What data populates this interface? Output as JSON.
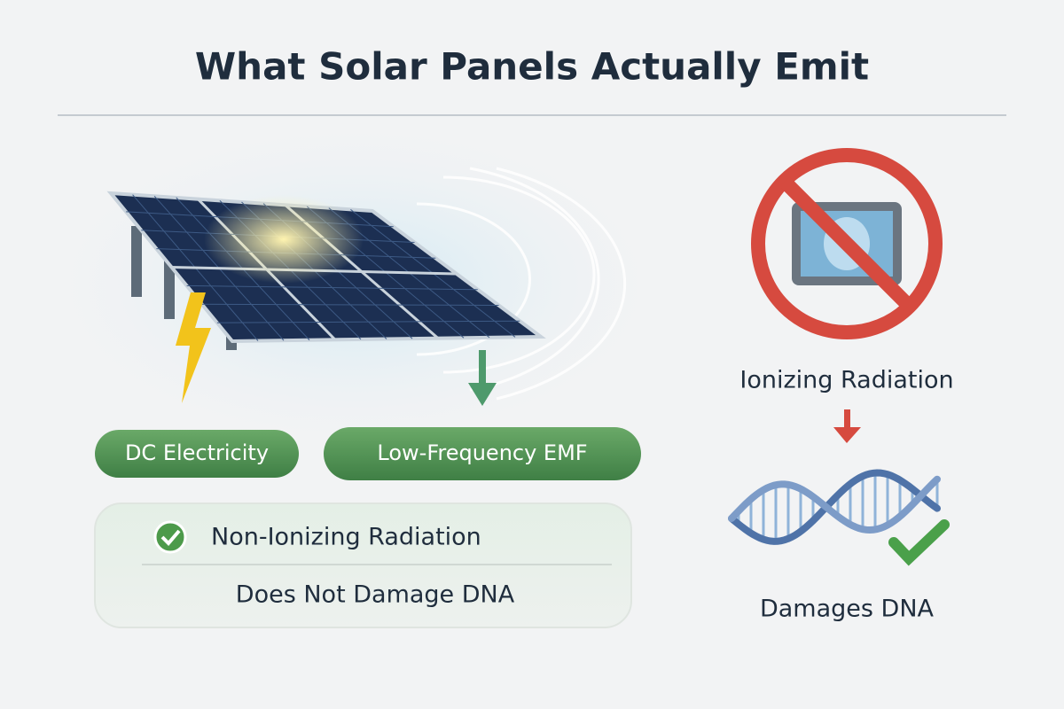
{
  "header": {
    "title": "What Solar Panels Actually Emit"
  },
  "left": {
    "badges": [
      "DC Electricity",
      "Low-Frequency EMF"
    ],
    "box": {
      "heading": "Non-Ionizing Radiation",
      "subheading": "Does Not Damage DNA"
    }
  },
  "right": {
    "label": "Ionizing Radiation",
    "result": "Damages DNA"
  }
}
